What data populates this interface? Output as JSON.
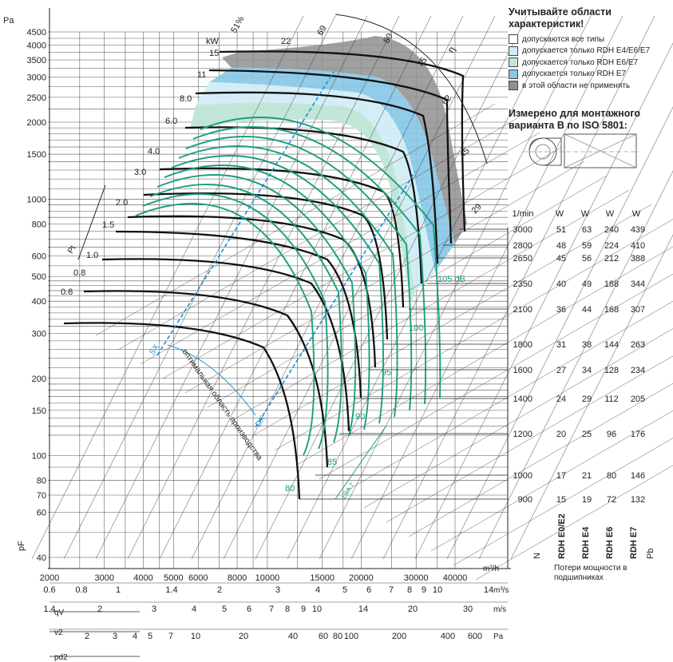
{
  "chart_data": {
    "type": "line",
    "title": "",
    "y_unit": "Pa",
    "y_ticks": [
      40,
      60,
      70,
      80,
      100,
      150,
      200,
      300,
      400,
      500,
      600,
      800,
      1000,
      1500,
      2000,
      2500,
      3000,
      3500,
      4000,
      4500
    ],
    "x_unit": "m³/h",
    "x_ticks": [
      2000,
      3000,
      4000,
      5000,
      6000,
      8000,
      10000,
      15000,
      20000,
      30000,
      40000
    ],
    "ylim": [
      40,
      4600
    ],
    "xlim": [
      2000,
      50000
    ],
    "y_axis_label": "pF",
    "secondary_axes": [
      {
        "name": "qV",
        "unit": "m³/s",
        "ticks": [
          "0.6",
          "0.8",
          "1",
          "1.4",
          "2",
          "3",
          "4",
          "5",
          "6",
          "7",
          "8",
          "9",
          "10",
          "14"
        ]
      },
      {
        "name": "v2",
        "unit": "m/s",
        "ticks": [
          "1.4",
          "2",
          "3",
          "4",
          "5",
          "6",
          "7",
          "8",
          "9",
          "10",
          "14",
          "20",
          "30"
        ]
      },
      {
        "name": "pd2",
        "unit": "Pa",
        "ticks": [
          "2",
          "3",
          "4",
          "5",
          "7",
          "10",
          "20",
          "40",
          "60",
          "80",
          "100",
          "200",
          "400",
          "600"
        ]
      }
    ],
    "speed_table": {
      "headers": [
        "1/min",
        "W",
        "W",
        "W",
        "W"
      ],
      "rows": [
        [
          "3000",
          "51",
          "63",
          "240",
          "439"
        ],
        [
          "2800",
          "48",
          "59",
          "224",
          "410"
        ],
        [
          "2650",
          "45",
          "56",
          "212",
          "388"
        ],
        [
          "2350",
          "40",
          "49",
          "188",
          "344"
        ],
        [
          "2100",
          "36",
          "44",
          "168",
          "307"
        ],
        [
          "1800",
          "31",
          "38",
          "144",
          "263"
        ],
        [
          "1600",
          "27",
          "34",
          "128",
          "234"
        ],
        [
          "1400",
          "24",
          "29",
          "112",
          "205"
        ],
        [
          "1200",
          "20",
          "25",
          "96",
          "176"
        ],
        [
          "1000",
          "17",
          "21",
          "80",
          "146"
        ],
        [
          "900",
          "15",
          "19",
          "72",
          "132"
        ]
      ],
      "column_labels": [
        "N",
        "RDH E0/E2",
        "RDH E4",
        "RDH E6",
        "RDH E7",
        "Pb"
      ]
    },
    "power_labels_kw": [
      "15",
      "11",
      "8.0",
      "6.0",
      "4.0",
      "3.0",
      "2.0",
      "1.5",
      "1.0",
      "0.8",
      "0.6"
    ],
    "power_unit": "kW",
    "efficiency_labels": [
      "51%",
      "69",
      "80",
      "75",
      "62",
      "45",
      "29"
    ],
    "dimension_label": "22",
    "eta_label": "η",
    "pt_label": "Pt",
    "noise_labels": [
      "105 dB",
      "100",
      "95",
      "90",
      "85",
      "80"
    ],
    "optimum_zone": {
      "label": "оптимальная область производства",
      "start": "SX",
      "end": "DX"
    },
    "lwa_label": "LwA 7"
  },
  "legend": {
    "title": "Учитывайте области характеристик!",
    "items": [
      {
        "label": "допускаются все типы",
        "color": "#ffffff"
      },
      {
        "label": "допускается только RDH E4/E6/E7",
        "color": "#d2ecf7"
      },
      {
        "label": "допускается только RDH E6/E7",
        "color": "#bfe6d6"
      },
      {
        "label": "допускается только RDH E7",
        "color": "#86c6e6"
      },
      {
        "label": "в этой области не применять",
        "color": "#8f8f8f"
      }
    ]
  },
  "measurement": {
    "title": "Измерено для монтажного варианта B по ISO 5801:"
  },
  "bearing_note": "Потери мощности в подшипниках",
  "colors": {
    "grid": "#555555",
    "curve": "#111111",
    "green": "#1a9e7e",
    "blue": "#1e8fd0"
  }
}
